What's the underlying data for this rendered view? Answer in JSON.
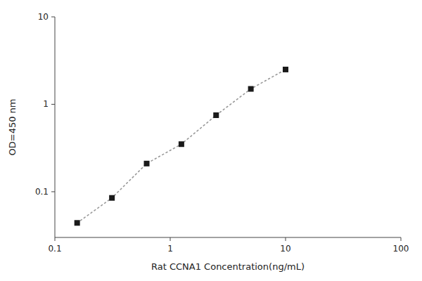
{
  "chart_data": {
    "type": "line",
    "xlabel": "Rat CCNA1 Concentration(ng/mL)",
    "ylabel": "OD=450 nm",
    "x": [
      0.156,
      0.3125,
      0.625,
      1.25,
      2.5,
      5.0,
      10.0
    ],
    "values": [
      0.044,
      0.085,
      0.21,
      0.35,
      0.75,
      1.5,
      2.5
    ],
    "log": true,
    "xlim": [
      0.1,
      100
    ],
    "ylim": [
      0.03,
      10
    ],
    "xticks": [
      0.1,
      1,
      10,
      100
    ],
    "yticks": [
      0.1,
      1,
      10
    ],
    "color": "#1a1a1a",
    "marker": "square",
    "line_style": "dotted",
    "grid": false
  }
}
